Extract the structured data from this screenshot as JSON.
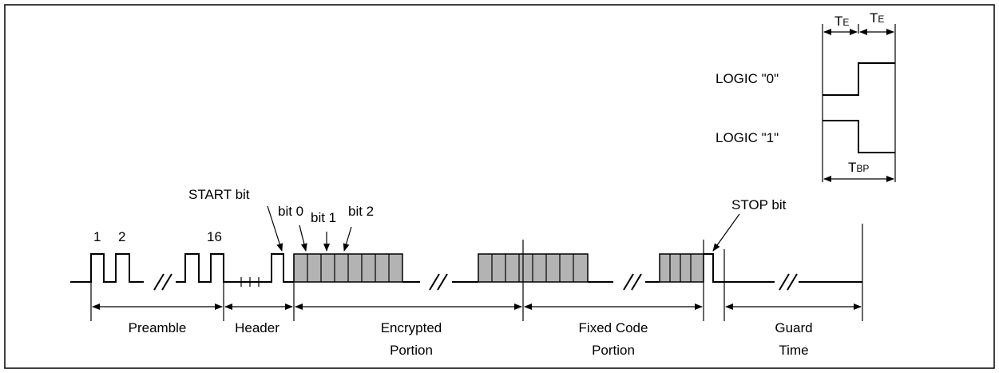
{
  "timing": {
    "te_left": "T",
    "te_left_sub": "E",
    "te_right": "T",
    "te_right_sub": "E",
    "logic0": "LOGIC \"0\"",
    "logic1": "LOGIC \"1\"",
    "tbp": "T",
    "tbp_sub": "BP"
  },
  "waveform": {
    "start_bit": "START bit",
    "bit0": "bit 0",
    "bit1": "bit 1",
    "bit2": "bit 2",
    "stop_bit": "STOP bit",
    "pulse_1": "1",
    "pulse_2": "2",
    "pulse_16": "16"
  },
  "sections": {
    "preamble": "Preamble",
    "header": "Header",
    "encrypted_1": "Encrypted",
    "encrypted_2": "Portion",
    "fixed_1": "Fixed Code",
    "fixed_2": "Portion",
    "guard_1": "Guard",
    "guard_2": "Time"
  }
}
